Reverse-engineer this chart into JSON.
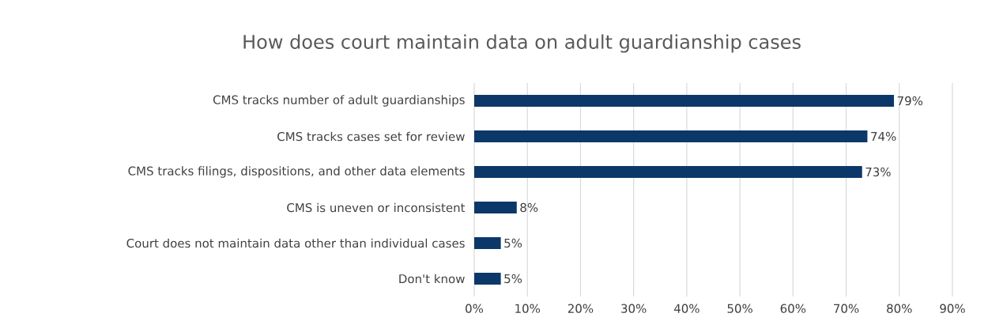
{
  "chart_data": {
    "type": "bar",
    "orientation": "horizontal",
    "title": "How does court maintain data on adult guardianship cases",
    "categories": [
      "CMS tracks number of adult guardianships",
      "CMS tracks cases set for review",
      "CMS tracks filings, dispositions, and other data elements",
      "CMS is uneven or inconsistent",
      "Court does not maintain data other than individual cases",
      "Don't know"
    ],
    "values": [
      79,
      74,
      73,
      8,
      5,
      5
    ],
    "value_labels": [
      "79%",
      "74%",
      "73%",
      "8%",
      "5%",
      "5%"
    ],
    "color": "#0c3869",
    "xlim": [
      0,
      90
    ],
    "xticks": [
      {
        "value": 0,
        "label": "0%"
      },
      {
        "value": 10,
        "label": "10%"
      },
      {
        "value": 20,
        "label": "20%"
      },
      {
        "value": 30,
        "label": "30%"
      },
      {
        "value": 40,
        "label": "40%"
      },
      {
        "value": 50,
        "label": "50%"
      },
      {
        "value": 60,
        "label": "60%"
      },
      {
        "value": 70,
        "label": "70%"
      },
      {
        "value": 80,
        "label": "80%"
      },
      {
        "value": 90,
        "label": "90%"
      }
    ],
    "grid": "x"
  }
}
